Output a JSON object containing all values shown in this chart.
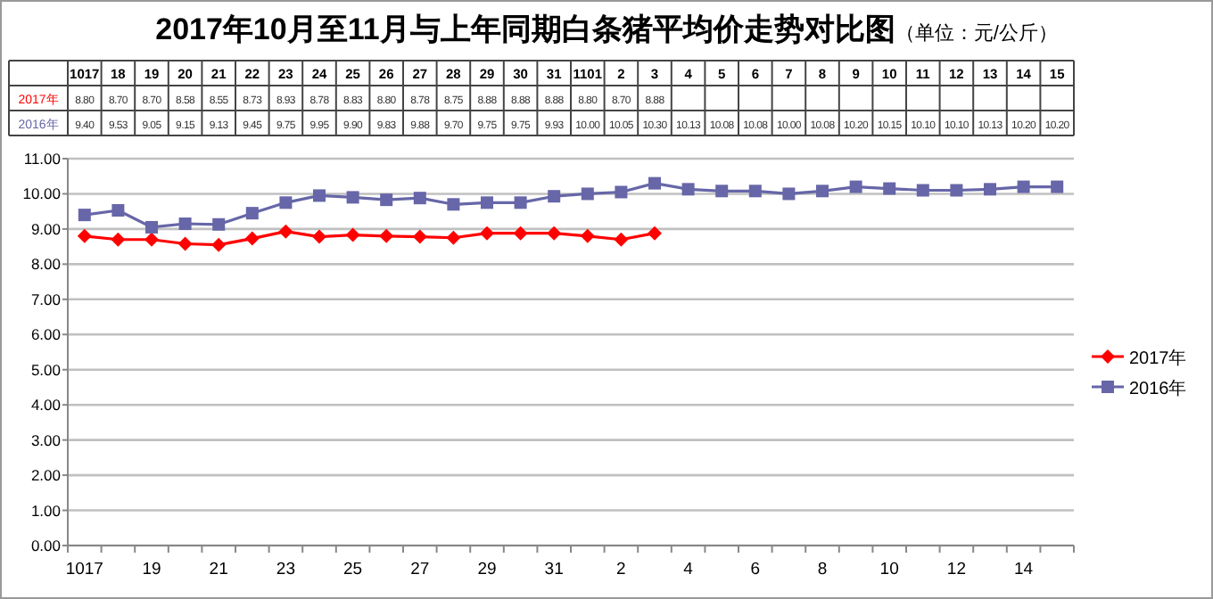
{
  "chart_data": {
    "type": "line",
    "title": "2017年10月至11月与上年同期白条猪平均价走势对比图",
    "subtitle": "（单位：元/公斤）",
    "categories": [
      "1017",
      "18",
      "19",
      "20",
      "21",
      "22",
      "23",
      "24",
      "25",
      "26",
      "27",
      "28",
      "29",
      "30",
      "31",
      "1101",
      "2",
      "3",
      "4",
      "5",
      "6",
      "7",
      "8",
      "9",
      "10",
      "11",
      "12",
      "13",
      "14",
      "15"
    ],
    "series": [
      {
        "name": "2017年",
        "color": "#ff0000",
        "marker": "diamond",
        "values": [
          8.8,
          8.7,
          8.7,
          8.58,
          8.55,
          8.73,
          8.93,
          8.78,
          8.83,
          8.8,
          8.78,
          8.75,
          8.88,
          8.88,
          8.88,
          8.8,
          8.7,
          8.88,
          null,
          null,
          null,
          null,
          null,
          null,
          null,
          null,
          null,
          null,
          null,
          null
        ],
        "value_labels": [
          "8.80",
          "8.70",
          "8.70",
          "8.58",
          "8.55",
          "8.73",
          "8.93",
          "8.78",
          "8.83",
          "8.80",
          "8.78",
          "8.75",
          "8.88",
          "8.88",
          "8.88",
          "8.80",
          "8.70",
          "8.88",
          null,
          null,
          null,
          null,
          null,
          null,
          null,
          null,
          null,
          null,
          null,
          null
        ]
      },
      {
        "name": "2016年",
        "color": "#6666a8",
        "marker": "square",
        "values": [
          9.4,
          9.53,
          9.05,
          9.15,
          9.13,
          9.45,
          9.75,
          9.95,
          9.9,
          9.83,
          9.88,
          9.7,
          9.75,
          9.75,
          9.93,
          10.0,
          10.05,
          10.3,
          10.13,
          10.08,
          10.08,
          10.0,
          10.08,
          10.2,
          10.15,
          10.1,
          10.1,
          10.13,
          10.2,
          10.2
        ],
        "value_labels": [
          "9.40",
          "9.53",
          "9.05",
          "9.15",
          "9.13",
          "9.45",
          "9.75",
          "9.95",
          "9.90",
          "9.83",
          "9.88",
          "9.70",
          "9.75",
          "9.75",
          "9.93",
          "10.00",
          "10.05",
          "10.30",
          "10.13",
          "10.08",
          "10.08",
          "10.00",
          "10.08",
          "10.20",
          "10.15",
          "10.10",
          "10.10",
          "10.13",
          "10.20",
          "10.20"
        ]
      }
    ],
    "ylim": [
      0,
      11
    ],
    "yticks": [
      {
        "value": 0,
        "label": "0.00"
      },
      {
        "value": 1,
        "label": "1.00"
      },
      {
        "value": 2,
        "label": "2.00"
      },
      {
        "value": 3,
        "label": "3.00"
      },
      {
        "value": 4,
        "label": "4.00"
      },
      {
        "value": 5,
        "label": "5.00"
      },
      {
        "value": 6,
        "label": "6.00"
      },
      {
        "value": 7,
        "label": "7.00"
      },
      {
        "value": 8,
        "label": "8.00"
      },
      {
        "value": 9,
        "label": "9.00"
      },
      {
        "value": 10,
        "label": "10.00"
      },
      {
        "value": 11,
        "label": "11.00"
      }
    ],
    "grid": "y",
    "legend": "right",
    "line_style": "solid"
  }
}
